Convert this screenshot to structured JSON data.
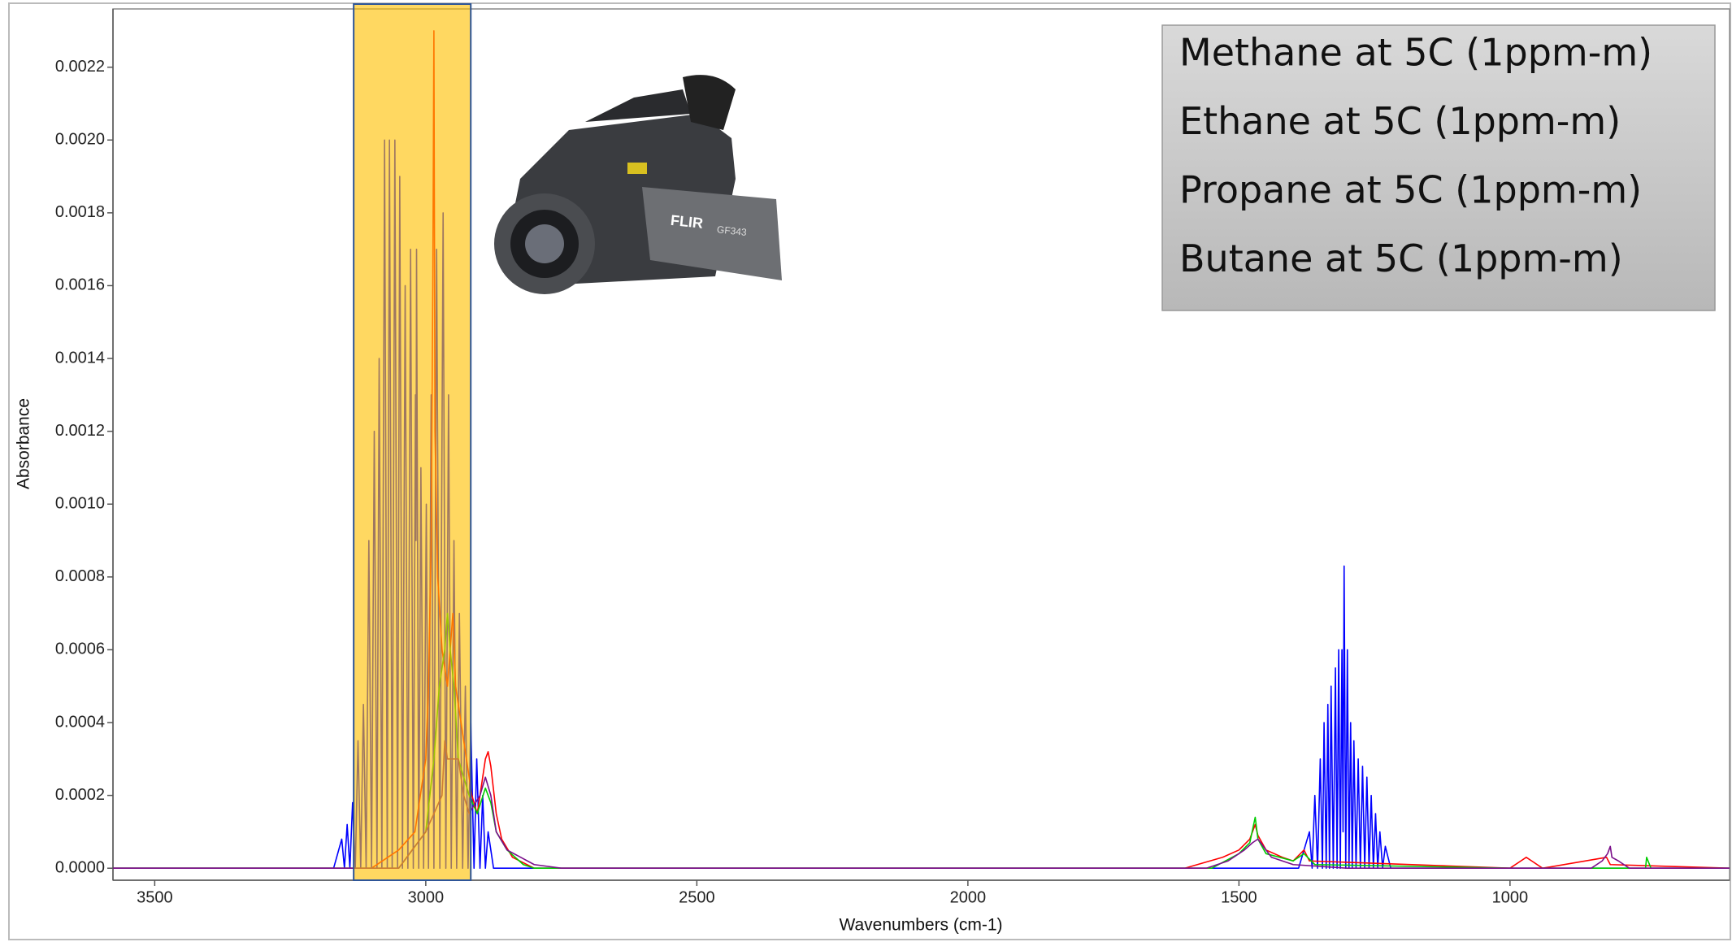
{
  "chart_data": {
    "type": "line",
    "x_label": "Wavenumbers (cm-1)",
    "y_label": "Absorbance",
    "xlim": [
      3577,
      595
    ],
    "ylim": [
      -3.3e-05,
      0.00236
    ],
    "xticks": [
      3500,
      3000,
      2500,
      2000,
      1500,
      1000
    ],
    "yticks": [
      {
        "value": 0,
        "label": "0.0000"
      },
      {
        "value": 0.0002,
        "label": "0.0002"
      },
      {
        "value": 0.0004,
        "label": "0.0004"
      },
      {
        "value": 0.0006,
        "label": "0.0006"
      },
      {
        "value": 0.0008,
        "label": "0.0008"
      },
      {
        "value": 0.001,
        "label": "0.0010"
      },
      {
        "value": 0.0012,
        "label": "0.0012"
      },
      {
        "value": 0.0014,
        "label": "0.0014"
      },
      {
        "value": 0.0016,
        "label": "0.0016"
      },
      {
        "value": 0.0018,
        "label": "0.0018"
      },
      {
        "value": 0.002,
        "label": "0.0020"
      },
      {
        "value": 0.0022,
        "label": "0.0022"
      }
    ],
    "highlight": {
      "x": [
        3133,
        2917
      ],
      "color": "#ffc000",
      "border": "#2e5597"
    },
    "camera_labels": [
      "FLIR",
      "GF343"
    ],
    "series": [
      {
        "name": "Methane at 5C (1ppm-m)",
        "color": "#0000ff",
        "x": [
          3577,
          3170,
          3155,
          3150,
          3145,
          3140,
          3135,
          3130,
          3125,
          3120,
          3115,
          3110,
          3105,
          3100,
          3095,
          3090,
          3086,
          3081,
          3076,
          3071,
          3067,
          3062,
          3057,
          3052,
          3048,
          3043,
          3038,
          3033,
          3028,
          3023,
          3019,
          3018,
          3017,
          3013,
          3009,
          3004,
          2999,
          2995,
          2990,
          2985,
          2980,
          2974,
          2968,
          2963,
          2958,
          2953,
          2948,
          2943,
          2938,
          2932,
          2927,
          2922,
          2917,
          2911,
          2906,
          2900,
          2895,
          2890,
          2885,
          2875,
          1390,
          1370,
          1365,
          1360,
          1355,
          1350,
          1346,
          1343,
          1339,
          1336,
          1333,
          1330,
          1326,
          1322,
          1319,
          1316,
          1313,
          1310,
          1308,
          1306,
          1303,
          1300,
          1297,
          1294,
          1291,
          1288,
          1284,
          1280,
          1276,
          1272,
          1268,
          1264,
          1260,
          1256,
          1252,
          1248,
          1244,
          1240,
          1235,
          1230,
          1220,
          595
        ],
        "values": [
          0,
          0,
          8e-05,
          0,
          0.00012,
          0,
          0.00018,
          0,
          0.00035,
          0,
          0.00045,
          0,
          0.0009,
          0,
          0.0012,
          0,
          0.0014,
          0,
          0.002,
          0,
          0.002,
          0,
          0.002,
          0,
          0.0019,
          0,
          0.0016,
          0,
          0.0017,
          0,
          0.0013,
          0.0009,
          0.0017,
          0,
          0.0011,
          0,
          0.001,
          0,
          0.0013,
          0,
          0.0017,
          0,
          0.0018,
          0,
          0.0013,
          0,
          0.0009,
          0,
          0.0007,
          0,
          0.0005,
          0,
          0.0004,
          0,
          0.0003,
          0,
          0.0002,
          0,
          0.0001,
          0,
          0,
          0.0001,
          0,
          0.0002,
          0,
          0.0003,
          0,
          0.0004,
          0,
          0.00045,
          0,
          0.0005,
          0,
          0.00055,
          0,
          0.0006,
          0,
          0.0006,
          0.0001,
          0.00083,
          0,
          0.0006,
          0,
          0.0004,
          0,
          0.00035,
          0,
          0.0003,
          0,
          0.00028,
          0,
          0.00025,
          0,
          0.0002,
          0,
          0.00015,
          0,
          0.0001,
          0,
          6e-05,
          0,
          0
        ]
      },
      {
        "name": "Ethane at 5C (1ppm-m)",
        "color": "#ff0000",
        "x": [
          3577,
          3100,
          3050,
          3020,
          3000,
          2995,
          2990,
          2987,
          2985,
          2983,
          2978,
          2970,
          2960,
          2950,
          2945,
          2935,
          2925,
          2915,
          2905,
          2895,
          2890,
          2885,
          2880,
          2870,
          2860,
          2840,
          2800,
          1600,
          1530,
          1500,
          1480,
          1470,
          1465,
          1450,
          1420,
          1400,
          1380,
          1370,
          1000,
          980,
          970,
          960,
          940,
          822,
          815,
          595
        ],
        "values": [
          0,
          0,
          5e-05,
          0.0001,
          0.0003,
          0.0005,
          0.0009,
          0.0016,
          0.0023,
          0.0012,
          0.0008,
          0.0006,
          0.0005,
          0.0007,
          0.0005,
          0.0004,
          0.0003,
          0.0002,
          0.00015,
          0.00025,
          0.0003,
          0.00032,
          0.00028,
          0.00015,
          8e-05,
          3e-05,
          0,
          0,
          3e-05,
          5e-05,
          8e-05,
          0.00012,
          9e-05,
          5e-05,
          3e-05,
          2e-05,
          5e-05,
          2e-05,
          0,
          2e-05,
          3e-05,
          2e-05,
          0,
          3e-05,
          1e-05,
          0
        ]
      },
      {
        "name": "Propane at 5C (1ppm-m)",
        "color": "#00cc00",
        "x": [
          3577,
          3050,
          3000,
          2985,
          2975,
          2965,
          2960,
          2955,
          2948,
          2940,
          2930,
          2920,
          2905,
          2890,
          2880,
          2870,
          2850,
          2820,
          2800,
          1550,
          1500,
          1480,
          1470,
          1465,
          1450,
          1400,
          1380,
          1360,
          1000,
          750,
          748,
          740,
          595
        ],
        "values": [
          0,
          0,
          0.0001,
          0.0003,
          0.0005,
          0.0006,
          0.0007,
          0.0006,
          0.0005,
          0.0003,
          0.00025,
          0.0002,
          0.00015,
          0.00022,
          0.00018,
          0.0001,
          5e-05,
          1e-05,
          0,
          0,
          4e-05,
          7e-05,
          0.00014,
          8e-05,
          4e-05,
          2e-05,
          4e-05,
          1e-05,
          0,
          0,
          3e-05,
          0,
          0
        ]
      },
      {
        "name": "Butane at 5C (1ppm-m)",
        "color": "#7b0f8a",
        "x": [
          3577,
          3050,
          3000,
          2970,
          2965,
          2960,
          2940,
          2930,
          2920,
          2900,
          2890,
          2880,
          2870,
          2850,
          2800,
          2750,
          1560,
          1520,
          1490,
          1475,
          1465,
          1455,
          1440,
          1400,
          1300,
          850,
          830,
          820,
          815,
          812,
          800,
          780,
          595
        ],
        "values": [
          0,
          0,
          0.0001,
          0.0002,
          0.00035,
          0.0003,
          0.0003,
          0.0002,
          0.00015,
          0.0002,
          0.00025,
          0.0002,
          0.0001,
          5e-05,
          1e-05,
          0,
          0,
          2e-05,
          5e-05,
          7e-05,
          8e-05,
          6e-05,
          3e-05,
          1e-05,
          0,
          0,
          2e-05,
          4e-05,
          6e-05,
          3e-05,
          2e-05,
          0,
          0
        ]
      }
    ]
  }
}
